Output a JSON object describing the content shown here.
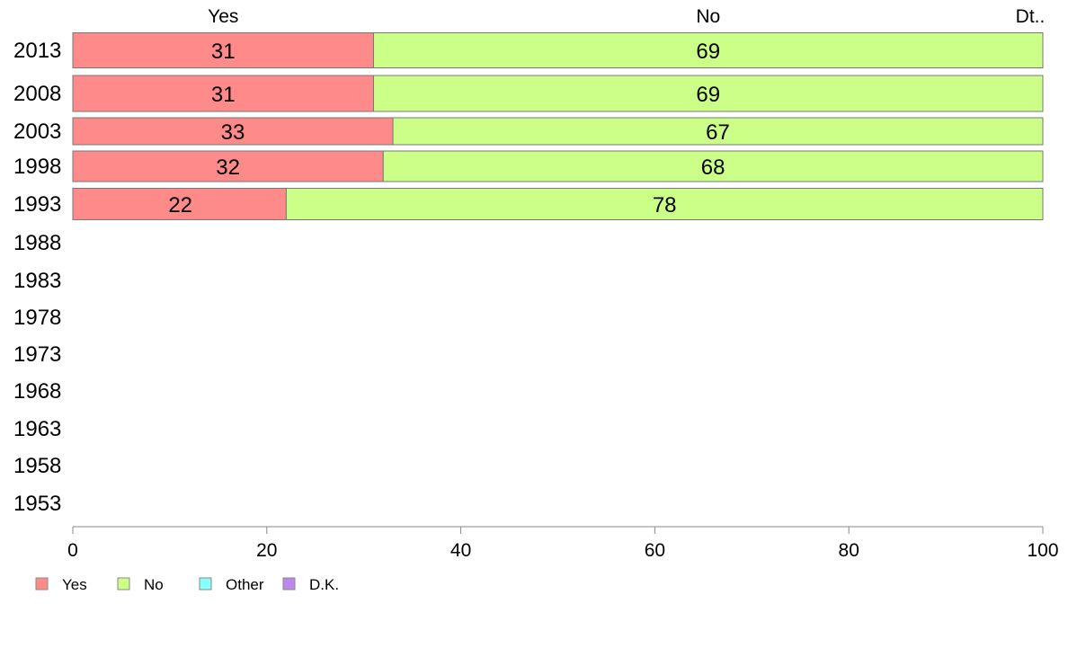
{
  "chart_data": {
    "type": "bar",
    "orientation": "horizontal",
    "stacked": true,
    "categories": [
      "2013",
      "2008",
      "2003",
      "1998",
      "1993",
      "1988",
      "1983",
      "1978",
      "1973",
      "1968",
      "1963",
      "1958",
      "1953"
    ],
    "series": [
      {
        "name": "Yes",
        "color": "#ff8a8a",
        "values": [
          31,
          31,
          33,
          32,
          22,
          null,
          null,
          null,
          null,
          null,
          null,
          null,
          null
        ]
      },
      {
        "name": "No",
        "color": "#ccff88",
        "values": [
          69,
          69,
          67,
          68,
          78,
          null,
          null,
          null,
          null,
          null,
          null,
          null,
          null
        ]
      },
      {
        "name": "Other",
        "color": "#88ffff",
        "values": [
          0,
          0,
          0,
          0,
          0,
          null,
          null,
          null,
          null,
          null,
          null,
          null,
          null
        ]
      },
      {
        "name": "D.K.",
        "color": "#bb88ee",
        "values": [
          0,
          0,
          0,
          0,
          0,
          null,
          null,
          null,
          null,
          null,
          null,
          null,
          null
        ]
      }
    ],
    "data_labels": [
      [
        "31",
        "69"
      ],
      [
        "31",
        "69"
      ],
      [
        "33",
        "67"
      ],
      [
        "32",
        "68"
      ],
      [
        "22",
        "78"
      ]
    ],
    "top_labels": [
      "Yes",
      "No",
      "Dt.."
    ],
    "x_ticks": [
      "0",
      "20",
      "40",
      "60",
      "80",
      "100"
    ],
    "xlim": [
      0,
      100
    ],
    "legend": [
      "Yes",
      "No",
      "Other",
      "D.K."
    ],
    "legend_position": "bottom-left",
    "grid": false,
    "title": "",
    "xlabel": "",
    "ylabel": ""
  }
}
